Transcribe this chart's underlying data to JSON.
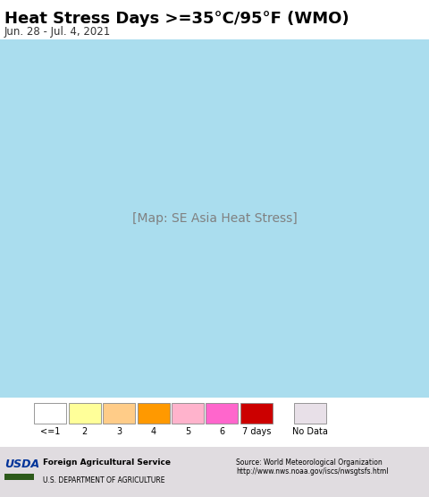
{
  "title": "Heat Stress Days >=35°C/95°F (WMO)",
  "subtitle": "Jun. 28 - Jul. 4, 2021",
  "legend_labels": [
    "<=1",
    "2",
    "3",
    "4",
    "5",
    "6",
    "7 days",
    "No Data"
  ],
  "legend_colors": [
    "#ffffff",
    "#ffff99",
    "#ffcc88",
    "#ff9900",
    "#ffb3cc",
    "#ff66cc",
    "#cc0000",
    "#e8e0e8"
  ],
  "ocean_color": "#aaddee",
  "land_bg": "#f0ece8",
  "title_fontsize": 13,
  "subtitle_fontsize": 8.5,
  "footer_bg": "#e0dce0",
  "usda_color": "#003366",
  "usda_green": "#2d5a1b",
  "map_extent_lon": [
    90,
    145
  ],
  "map_extent_lat": [
    -12,
    28
  ],
  "source_text": "Source: World Meteorological Organization\nhttp://www.nws.noaa.gov/iscs/nwsgtsfs.html"
}
